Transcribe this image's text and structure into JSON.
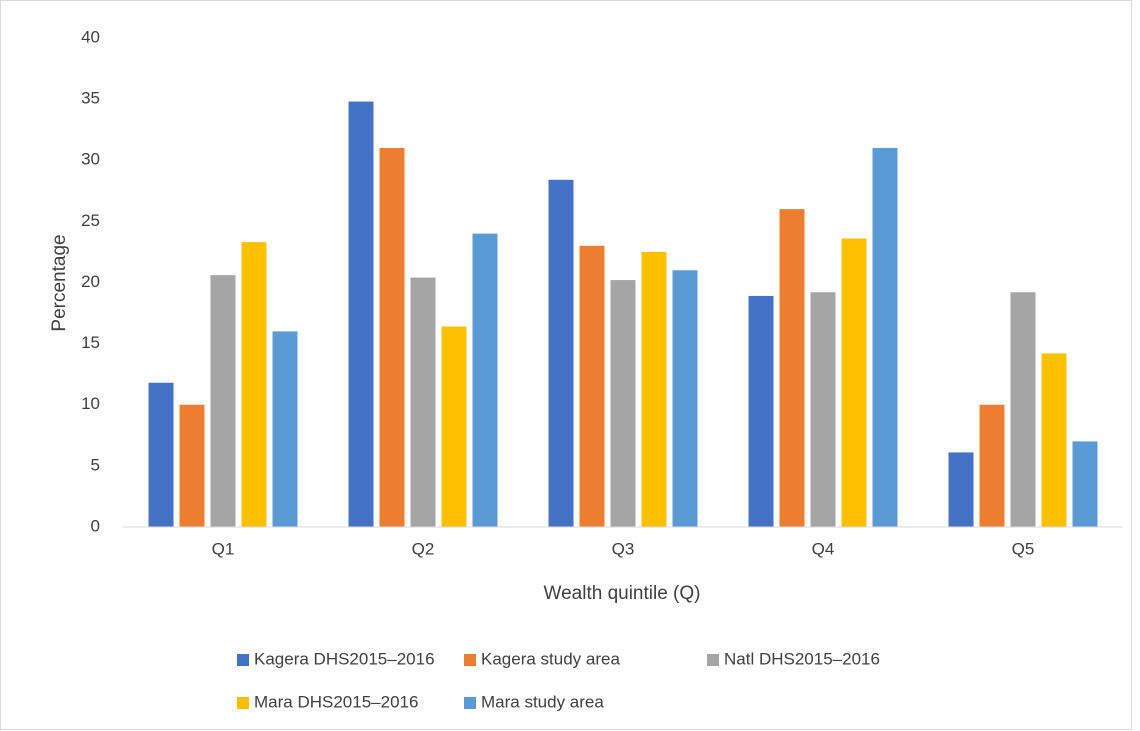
{
  "chart_data": {
    "type": "bar",
    "x_label": "Wealth quintile (Q)",
    "y_label": "Percentage",
    "categories": [
      "Q1",
      "Q2",
      "Q3",
      "Q4",
      "Q5"
    ],
    "series": [
      {
        "name": "Kagera DHS2015–2016",
        "color": "#4472c4",
        "values": [
          11.8,
          34.8,
          28.4,
          18.9,
          6.1
        ]
      },
      {
        "name": "Kagera study area",
        "color": "#ed7d31",
        "values": [
          10,
          31,
          23,
          26,
          10
        ]
      },
      {
        "name": "Natl DHS2015–2016",
        "color": "#a5a5a5",
        "values": [
          20.6,
          20.4,
          20.2,
          19.2,
          19.2
        ]
      },
      {
        "name": "Mara DHS2015–2016",
        "color": "#ffc000",
        "values": [
          23.3,
          16.4,
          22.5,
          23.6,
          14.2
        ]
      },
      {
        "name": "Mara study area",
        "color": "#5b9bd5",
        "values": [
          16,
          24,
          21,
          31,
          7
        ]
      }
    ],
    "ylim": [
      0,
      40
    ],
    "yticks": [
      0,
      5,
      10,
      15,
      20,
      25,
      30,
      35,
      40
    ],
    "grid": false,
    "legend": "bottom"
  }
}
